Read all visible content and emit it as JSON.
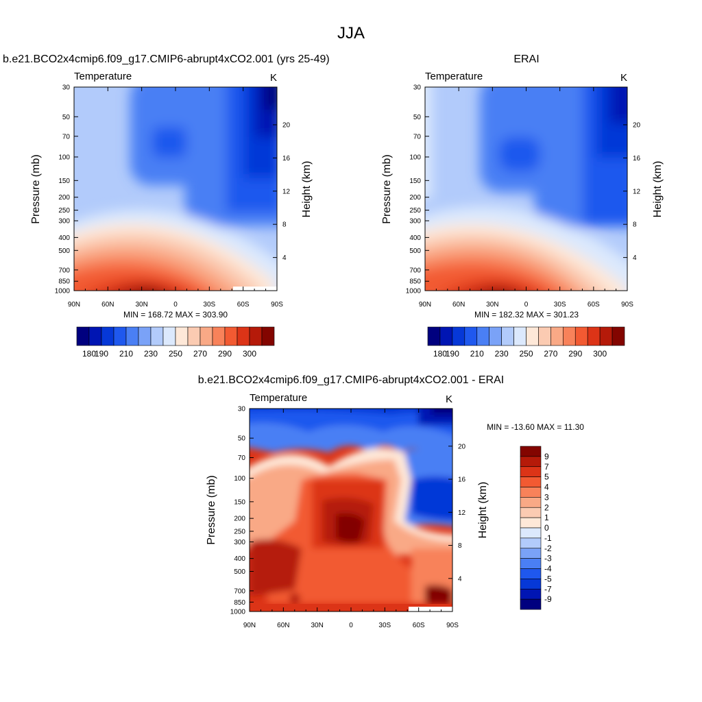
{
  "page": {
    "title": "JJA"
  },
  "colors": {
    "temp_palette": [
      "#00007f",
      "#0015b3",
      "#0638d7",
      "#1f58ee",
      "#4a7ff4",
      "#7aa2f7",
      "#b2cbfb",
      "#dce9fd",
      "#fee8d8",
      "#fbcbb2",
      "#f9a986",
      "#f8825a",
      "#f25a32",
      "#dc3417",
      "#b51a09",
      "#830500"
    ],
    "diff_palette": [
      "#830500",
      "#b51a09",
      "#dc3417",
      "#f25a32",
      "#f8825a",
      "#f9a986",
      "#fbcbb2",
      "#fee8d8",
      "#dce9fd",
      "#b2cbfb",
      "#7aa2f7",
      "#4a7ff4",
      "#1f58ee",
      "#0638d7",
      "#0015b3",
      "#00007f"
    ]
  },
  "chart_data": [
    {
      "type": "heatmap",
      "title": "b.e21.BCO2x4cmip6.f09_g17.CMIP6-abrupt4xCO2.001 (yrs 25-49)",
      "left_label": "Temperature",
      "right_label": "K",
      "ylabel": "Pressure (mb)",
      "y2label": "Height (km)",
      "x_ticks": [
        "90N",
        "60N",
        "30N",
        "0",
        "30S",
        "60S",
        "90S"
      ],
      "y_ticks": [
        "30",
        "50",
        "70",
        "100",
        "150",
        "200",
        "250",
        "300",
        "400",
        "500",
        "700",
        "850",
        "1000"
      ],
      "y2_ticks": [
        "20",
        "16",
        "12",
        "8",
        "4"
      ],
      "stats": "MIN = 168.72  MAX = 303.90",
      "colorbar_labels": [
        "180",
        "190",
        "210",
        "230",
        "250",
        "270",
        "290",
        "300"
      ],
      "min": 168.72,
      "max": 303.9
    },
    {
      "type": "heatmap",
      "title": "ERAI",
      "left_label": "Temperature",
      "right_label": "K",
      "ylabel": "Pressure (mb)",
      "y2label": "Height (km)",
      "x_ticks": [
        "90N",
        "60N",
        "30N",
        "0",
        "30S",
        "60S",
        "90S"
      ],
      "y_ticks": [
        "30",
        "50",
        "70",
        "100",
        "150",
        "200",
        "250",
        "300",
        "400",
        "500",
        "700",
        "850",
        "1000"
      ],
      "y2_ticks": [
        "20",
        "16",
        "12",
        "8",
        "4"
      ],
      "stats": "MIN = 182.32  MAX = 301.23",
      "colorbar_labels": [
        "180",
        "190",
        "210",
        "230",
        "250",
        "270",
        "290",
        "300"
      ],
      "min": 182.32,
      "max": 301.23
    },
    {
      "type": "heatmap",
      "title": "b.e21.BCO2x4cmip6.f09_g17.CMIP6-abrupt4xCO2.001 - ERAI",
      "left_label": "Temperature",
      "right_label": "K",
      "ylabel": "Pressure (mb)",
      "y2label": "Height (km)",
      "x_ticks": [
        "90N",
        "60N",
        "30N",
        "0",
        "30S",
        "60S",
        "90S"
      ],
      "y_ticks": [
        "30",
        "50",
        "70",
        "100",
        "150",
        "200",
        "250",
        "300",
        "400",
        "500",
        "700",
        "850",
        "1000"
      ],
      "y2_ticks": [
        "20",
        "16",
        "12",
        "8",
        "4"
      ],
      "stats": "MIN = -13.60  MAX =  11.30",
      "colorbar_labels": [
        "9",
        "7",
        "5",
        "4",
        "3",
        "2",
        "1",
        "0",
        "-1",
        "-2",
        "-3",
        "-4",
        "-5",
        "-7",
        "-9"
      ],
      "min": -13.6,
      "max": 11.3
    }
  ]
}
